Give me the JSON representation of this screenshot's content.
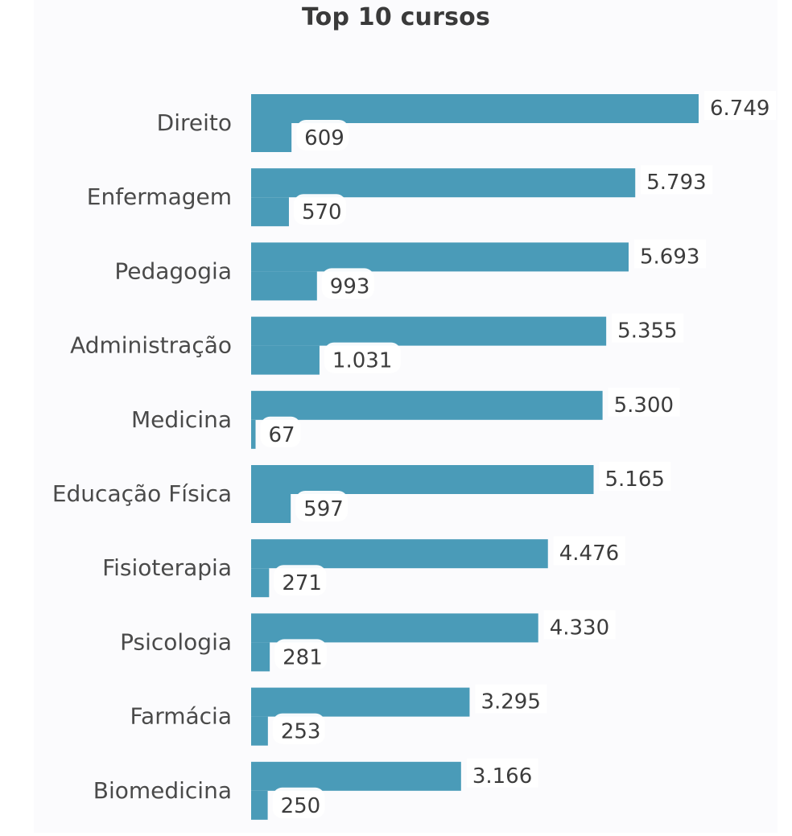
{
  "chart_data": {
    "type": "bar",
    "orientation": "horizontal",
    "title": "Top 10 cursos",
    "categories": [
      "Direito",
      "Enfermagem",
      "Pedagogia",
      "Administração",
      "Medicina",
      "Educação Física",
      "Fisioterapia",
      "Psicologia",
      "Farmácia",
      "Biomedicina"
    ],
    "series": [
      {
        "values": [
          6749,
          5793,
          5693,
          5355,
          5300,
          5165,
          4476,
          4330,
          3295,
          3166
        ],
        "labels": [
          "6.749",
          "5.793",
          "5.693",
          "5.355",
          "5.300",
          "5.165",
          "4.476",
          "4.330",
          "3.295",
          "3.166"
        ],
        "color": "#4a9bb8"
      },
      {
        "values": [
          609,
          570,
          993,
          1031,
          67,
          597,
          271,
          281,
          253,
          250
        ],
        "labels": [
          "609",
          "570",
          "993",
          "1.031",
          "67",
          "597",
          "271",
          "281",
          "253",
          "250"
        ],
        "color": "#4a9bb8"
      }
    ],
    "xlim": [
      0,
      6749
    ],
    "grid": false,
    "legend": "none"
  }
}
